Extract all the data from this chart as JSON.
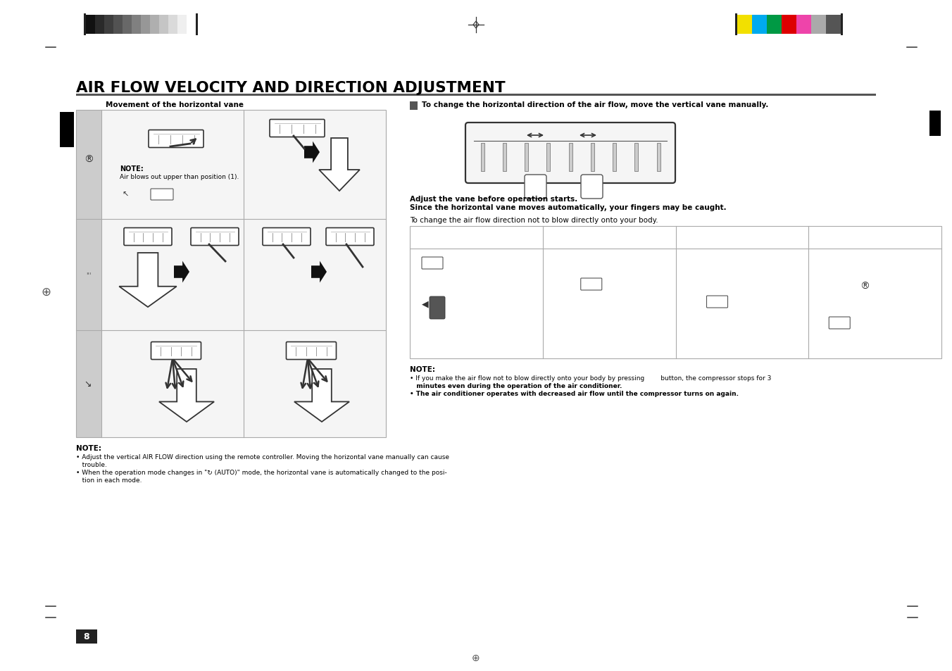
{
  "title": "AIR FLOW VELOCITY AND DIRECTION ADJUSTMENT",
  "subtitle_left": "Movement of the horizontal vane",
  "subtitle_right": "To change the horizontal direction of the air flow, move the vertical vane manually.",
  "page_number": "8",
  "bg_color": "#ffffff",
  "note_left_1": "NOTE:",
  "note_left_2": "• Adjust the vertical AIR FLOW direction using the remote controller. Moving the horizontal vane manually can cause",
  "note_left_3": "   trouble.",
  "note_left_4": "• When the operation mode changes in \"↻ (AUTO)\" mode, the horizontal vane is automatically changed to the posi-",
  "note_left_5": "   tion in each mode.",
  "note_right_1": "NOTE:",
  "note_right_2": "• If you make the air flow not to blow directly onto your body by pressing        button, the compressor stops for 3",
  "note_right_3": "   minutes even during the operation of the air conditioner.",
  "note_right_4": "• The air conditioner operates with decreased air flow until the compressor turns on again.",
  "adjust_note_1": "Adjust the vane before operation starts.",
  "adjust_note_2": "Since the horizontal vane moves automatically, your fingers may be caught.",
  "direction_note": "To change the air flow direction not to blow directly onto your body.",
  "sub_note_label": "NOTE:",
  "sub_note_text": "Air blows out upper than position (1).",
  "header_grayscale": [
    "#111111",
    "#2a2a2a",
    "#3e3e3e",
    "#525252",
    "#686868",
    "#808080",
    "#979797",
    "#afafaf",
    "#c5c5c5",
    "#dadada",
    "#efefef",
    "#ffffff"
  ],
  "header_colors": [
    "#f2e000",
    "#00aaee",
    "#009944",
    "#dd0000",
    "#ee44aa",
    "#aaaaaa",
    "#555555"
  ],
  "grid_border": "#aaaaaa",
  "gray_col": "#cccccc",
  "cell_bg": "#e8e8e8",
  "cell_bg_white": "#f5f5f5"
}
